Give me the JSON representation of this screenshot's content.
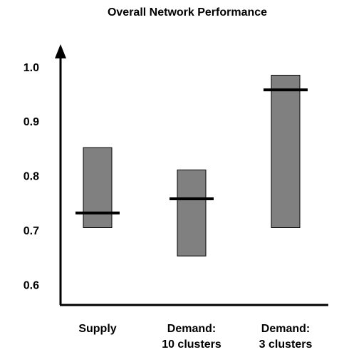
{
  "chart_data": {
    "type": "range-bar",
    "title": "Overall Network Performance",
    "categories": [
      [
        "Supply"
      ],
      [
        "Demand:",
        "10 clusters"
      ],
      [
        "Demand:",
        "3 clusters"
      ]
    ],
    "low": [
      0.707,
      0.655,
      0.707
    ],
    "high": [
      0.854,
      0.813,
      0.987
    ],
    "median": [
      0.734,
      0.76,
      0.96
    ],
    "color": "#808080",
    "ylim": [
      0.565,
      1.04
    ],
    "yticks": [
      0.6,
      0.7,
      0.8,
      0.9,
      {
        "value": 1,
        "label": "1.0"
      }
    ]
  }
}
